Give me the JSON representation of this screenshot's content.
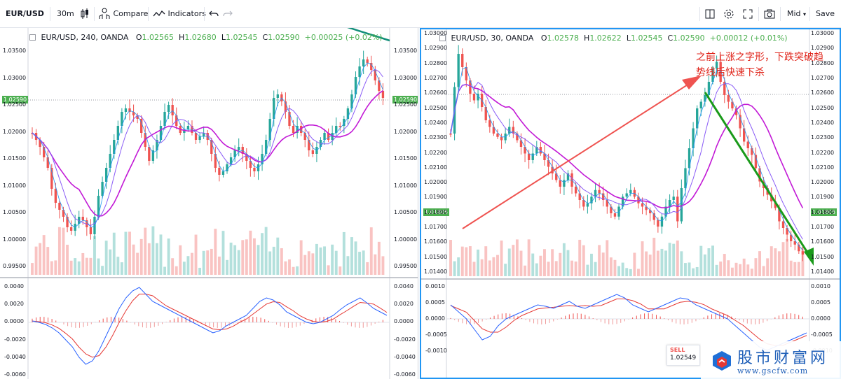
{
  "toolbar": {
    "symbol": "EUR/USD",
    "interval": "30m",
    "compare_label": "Compare",
    "indicators_label": "Indicators",
    "price_type": "Mid",
    "save_label": "Save"
  },
  "left_chart": {
    "legend": {
      "title": "EUR/USD, 240, OANDA",
      "o_label": "O",
      "o": "1.02565",
      "h_label": "H",
      "h": "1.02680",
      "l_label": "L",
      "l": "1.02545",
      "c_label": "C",
      "c": "1.02590",
      "change": "+0.00025 (+0.02%)"
    },
    "price_ticks": [
      "1.03500",
      "1.03000",
      "1.02500",
      "1.02000",
      "1.01500",
      "1.01000",
      "1.00500",
      "1.00000",
      "0.99500"
    ],
    "last_price": "1.02590",
    "macd_ticks": [
      "0.0040",
      "0.0020",
      "0.0000",
      "-0.0020",
      "-0.0040",
      "-0.0060"
    ]
  },
  "right_chart": {
    "legend": {
      "title": "EUR/USD, 30, OANDA",
      "o_label": "O",
      "o": "1.02578",
      "h_label": "H",
      "h": "1.02622",
      "l_label": "L",
      "l": "1.02545",
      "c_label": "C",
      "c": "1.02590",
      "change": "+0.00012 (+0.01%)"
    },
    "price_ticks": [
      "1.03000",
      "1.02900",
      "1.02800",
      "1.02700",
      "1.02600",
      "1.02500",
      "1.02400",
      "1.02300",
      "1.02200",
      "1.02100",
      "1.02000",
      "1.01900",
      "1.01800",
      "1.01700",
      "1.01600",
      "1.01500",
      "1.01400"
    ],
    "last_price": "1.01805",
    "macd_ticks": [
      "0.0010",
      "0.0005",
      "0.0000",
      "-0.0005",
      "-0.0010"
    ],
    "sell_label": "SELL",
    "sell_price": "1.02549",
    "annotation_line1": "之前上涨之字形，下跌突破趋",
    "annotation_line2": "势线后快速下杀"
  },
  "watermark": {
    "text": "股市财富网",
    "url": "www.gscfw.com"
  },
  "colors": {
    "up": "#26a69a",
    "down": "#ef5350",
    "ma_purple": "#c219d6",
    "ma_violet": "#8a5cf6",
    "accent": "#2196f3",
    "annotation_red": "#e0261c",
    "trend_green": "#1a9a1a",
    "price_tag": "#4caf50"
  }
}
